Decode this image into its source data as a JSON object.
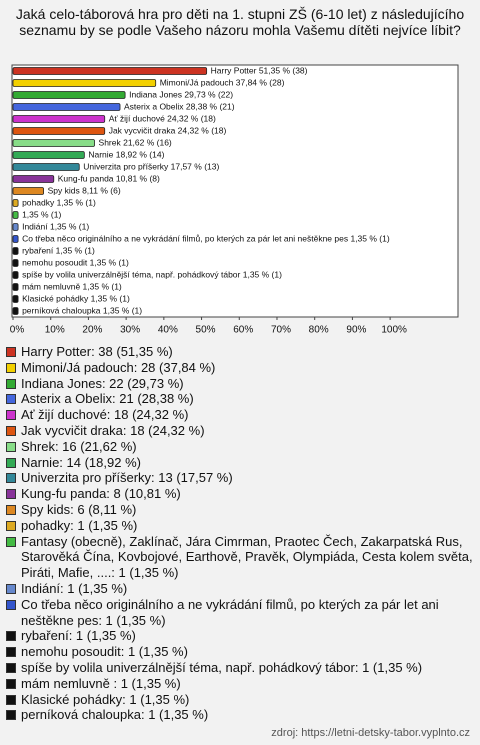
{
  "chart_data": {
    "type": "bar",
    "orientation": "horizontal",
    "title": "Jaká celo-táborová hra pro děti na 1. stupni ZŠ (6-10 let) z následujícího seznamu by se podle Vašeho názoru mohla Vašemu dítěti nejvíce líbit?",
    "values": [
      51.35,
      37.84,
      29.73,
      28.38,
      24.32,
      24.32,
      21.62,
      18.92,
      17.57,
      10.81,
      8.11,
      1.35,
      1.35,
      1.35,
      1.35,
      1.35,
      1.35,
      1.35,
      1.35,
      1.35,
      1.35
    ],
    "value_labels": [
      "Harry Potter 51,35 % (38)",
      "Mimoni/Já padouch 37,84 % (28)",
      "Indiana Jones 29,73 % (22)",
      "Asterix a Obelix 28,38 % (21)",
      "Ať žijí duchové 24,32 % (18)",
      "Jak vycvičit draka 24,32 % (18)",
      "Shrek 21,62 % (16)",
      "Narnie 18,92 % (14)",
      "Univerzita pro příšerky 17,57 % (13)",
      "Kung-fu panda 10,81 % (8)",
      "Spy kids 8,11 % (6)",
      "pohadky 1,35 % (1)",
      "1,35 % (1)",
      "Indiání 1,35 % (1)",
      "Co třeba něco originálního a ne vykrádání filmů, po kterých za pár let ani neštěkne pes 1,35 % (1)",
      "rybaření 1,35 % (1)",
      "nemohu posoudit 1,35 % (1)",
      "spíše by volila univerzálnější téma, např. pohádkový tábor 1,35 % (1)",
      "mám nemluvně  1,35 % (1)",
      "Klasické pohádky 1,35 % (1)",
      "perníková chaloupka 1,35 % (1)"
    ],
    "colors": [
      "#cc3322",
      "#f2d000",
      "#33aa33",
      "#4466dd",
      "#cc33cc",
      "#dd5511",
      "#88dd88",
      "#33aa55",
      "#338899",
      "#883399",
      "#dd8822",
      "#ddaa22",
      "#44bb44",
      "#6688cc",
      "#3355cc",
      "#111111",
      "#111111",
      "#111111",
      "#111111",
      "#111111",
      "#111111"
    ],
    "legend": [
      "Harry Potter: 38 (51,35 %)",
      "Mimoni/Já padouch: 28 (37,84 %)",
      "Indiana Jones: 22 (29,73 %)",
      "Asterix a Obelix: 21 (28,38 %)",
      "Ať žijí duchové: 18 (24,32 %)",
      "Jak vycvičit draka: 18 (24,32 %)",
      "Shrek: 16 (21,62 %)",
      "Narnie: 14 (18,92 %)",
      "Univerzita pro příšerky: 13 (17,57 %)",
      "Kung-fu panda: 8 (10,81 %)",
      "Spy kids: 6 (8,11 %)",
      "pohadky: 1 (1,35 %)",
      "Fantasy (obecně), Zaklínač, Jára Cimrman, Praotec Čech, Zakarpatská Rus, Starověká Čína, Kovbojové, Earthově, Pravěk, Olympiáda, Cesta kolem světa, Piráti, Mafie, ....: 1 (1,35 %)",
      "Indiání: 1 (1,35 %)",
      "Co třeba něco originálního a ne vykrádání filmů, po kterých za pár let ani neštěkne pes: 1 (1,35 %)",
      "rybaření: 1 (1,35 %)",
      "nemohu posoudit: 1 (1,35 %)",
      "spíše by volila univerzálnější téma, např. pohádkový tábor: 1 (1,35 %)",
      "mám nemluvně : 1 (1,35 %)",
      "Klasické pohádky: 1 (1,35 %)",
      "perníková chaloupka: 1 (1,35 %)"
    ],
    "xlim": [
      0,
      118
    ],
    "xticks": [
      {
        "value": 0,
        "label": "0%"
      },
      {
        "value": 10,
        "label": "10%"
      },
      {
        "value": 20,
        "label": "20%"
      },
      {
        "value": 30,
        "label": "30%"
      },
      {
        "value": 40,
        "label": "40%"
      },
      {
        "value": 50,
        "label": "50%"
      },
      {
        "value": 60,
        "label": "60%"
      },
      {
        "value": 70,
        "label": "70%"
      },
      {
        "value": 80,
        "label": "80%"
      },
      {
        "value": 90,
        "label": "90%"
      },
      {
        "value": 100,
        "label": "100%"
      }
    ],
    "grid": false,
    "source": "zdroj: https://letni-detsky-tabor.vyplnto.cz"
  }
}
